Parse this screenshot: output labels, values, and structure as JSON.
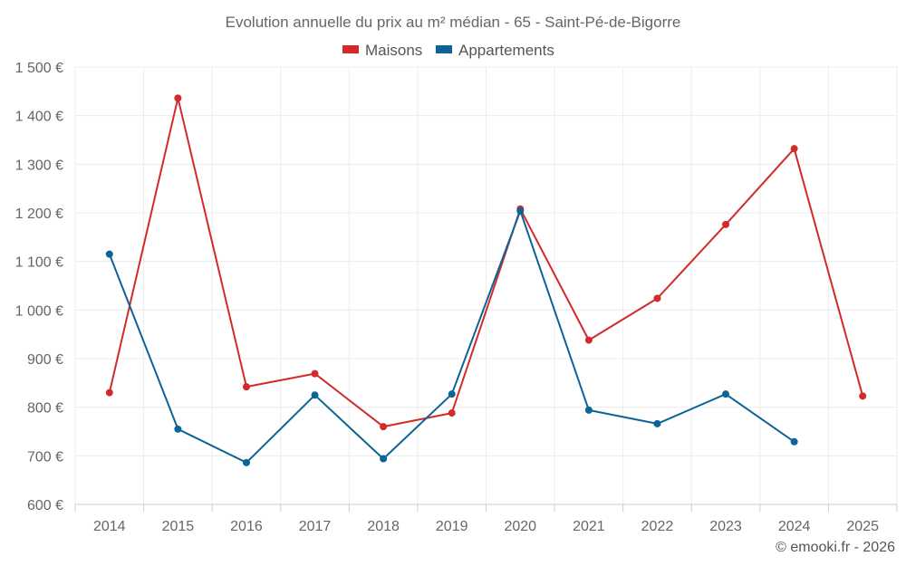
{
  "chart_data": {
    "type": "line",
    "title": "Evolution annuelle du prix au m² médian - 65 - Saint-Pé-de-Bigorre",
    "x": [
      "2014",
      "2015",
      "2016",
      "2017",
      "2018",
      "2019",
      "2020",
      "2021",
      "2022",
      "2023",
      "2024",
      "2025"
    ],
    "series": [
      {
        "name": "Maisons",
        "color": "#d22a2a",
        "values": [
          830,
          1436,
          842,
          869,
          760,
          788,
          1208,
          938,
          1024,
          1176,
          1332,
          823
        ]
      },
      {
        "name": "Appartements",
        "color": "#0c6397",
        "values": [
          1115,
          755,
          686,
          825,
          694,
          827,
          1204,
          794,
          766,
          827,
          729,
          null
        ]
      }
    ],
    "ylim": [
      600,
      1500
    ],
    "yticks": [
      600,
      700,
      800,
      900,
      1000,
      1100,
      1200,
      1300,
      1400,
      1500
    ],
    "ytick_labels": [
      "600 €",
      "700 €",
      "800 €",
      "900 €",
      "1 000 €",
      "1 100 €",
      "1 200 €",
      "1 300 €",
      "1 400 €",
      "1 500 €"
    ],
    "xlabel": "",
    "ylabel": "",
    "grid": true,
    "legend_position": "top-center"
  },
  "footer": {
    "credit": "© emooki.fr - 2026"
  }
}
